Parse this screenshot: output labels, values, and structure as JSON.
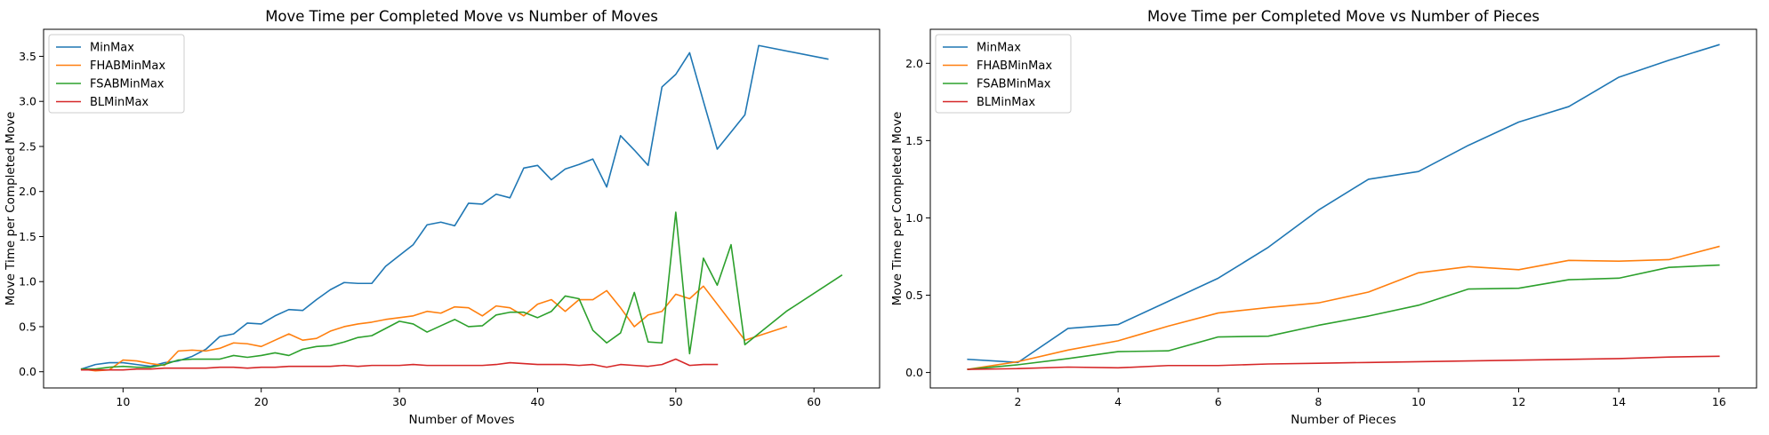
{
  "chart_data": [
    {
      "type": "line",
      "title": "Move Time per Completed Move vs Number of Moves",
      "xlabel": "Number of Moves",
      "ylabel": "Move Time per Completed Move",
      "xlim": [
        4.25,
        64.75
      ],
      "ylim": [
        -0.18,
        3.8
      ],
      "xticks": [
        10,
        20,
        30,
        40,
        50,
        60
      ],
      "yticks": [
        0.0,
        0.5,
        1.0,
        1.5,
        2.0,
        2.5,
        3.0,
        3.5
      ],
      "xtick_labels": [
        "10",
        "20",
        "30",
        "40",
        "50",
        "60"
      ],
      "ytick_labels": [
        "0.0",
        "0.5",
        "1.0",
        "1.5",
        "2.0",
        "2.5",
        "3.0",
        "3.5"
      ],
      "grid": false,
      "legend_position": "upper left",
      "series": [
        {
          "name": "MinMax",
          "color": "#1f77b4",
          "x": [
            7,
            8,
            9,
            10,
            11,
            12,
            13,
            14,
            15,
            16,
            17,
            18,
            19,
            20,
            21,
            22,
            23,
            24,
            25,
            26,
            27,
            28,
            29,
            30,
            31,
            32,
            33,
            34,
            35,
            36,
            37,
            38,
            39,
            40,
            41,
            42,
            43,
            44,
            45,
            46,
            47,
            48,
            49,
            50,
            51,
            52,
            53,
            54,
            55,
            56,
            61
          ],
          "y": [
            0.03,
            0.08,
            0.1,
            0.1,
            0.08,
            0.06,
            0.1,
            0.12,
            0.17,
            0.25,
            0.39,
            0.42,
            0.54,
            0.53,
            0.62,
            0.69,
            0.68,
            0.8,
            0.91,
            0.99,
            0.98,
            0.98,
            1.17,
            1.29,
            1.41,
            1.63,
            1.66,
            1.62,
            1.87,
            1.86,
            1.97,
            1.93,
            2.26,
            2.29,
            2.13,
            2.25,
            2.3,
            2.36,
            2.05,
            2.62,
            2.46,
            2.29,
            3.16,
            3.3,
            3.54,
            3.0,
            2.47,
            2.66,
            2.85,
            3.62,
            3.47
          ]
        },
        {
          "name": "FHABMinMax",
          "color": "#ff7f0e",
          "x": [
            7,
            8,
            9,
            10,
            11,
            12,
            13,
            14,
            15,
            16,
            17,
            18,
            19,
            20,
            21,
            22,
            23,
            24,
            25,
            26,
            27,
            28,
            29,
            30,
            31,
            32,
            33,
            34,
            35,
            36,
            37,
            38,
            39,
            40,
            41,
            42,
            43,
            44,
            45,
            46,
            47,
            48,
            49,
            50,
            51,
            52,
            55,
            58
          ],
          "y": [
            0.03,
            0.01,
            0.02,
            0.13,
            0.12,
            0.09,
            0.07,
            0.23,
            0.24,
            0.23,
            0.26,
            0.32,
            0.31,
            0.28,
            0.35,
            0.42,
            0.35,
            0.37,
            0.45,
            0.5,
            0.53,
            0.55,
            0.58,
            0.6,
            0.62,
            0.67,
            0.65,
            0.72,
            0.71,
            0.62,
            0.73,
            0.71,
            0.62,
            0.75,
            0.8,
            0.67,
            0.8,
            0.8,
            0.9,
            0.71,
            0.5,
            0.63,
            0.67,
            0.86,
            0.81,
            0.95,
            0.35,
            0.5
          ]
        },
        {
          "name": "FSABMinMax",
          "color": "#2ca02c",
          "x": [
            7,
            8,
            9,
            10,
            11,
            12,
            13,
            14,
            15,
            16,
            17,
            18,
            19,
            20,
            21,
            22,
            23,
            24,
            25,
            26,
            27,
            28,
            29,
            30,
            31,
            32,
            33,
            34,
            35,
            36,
            37,
            38,
            39,
            40,
            41,
            42,
            43,
            44,
            45,
            46,
            47,
            48,
            49,
            50,
            51,
            52,
            53,
            54,
            55,
            58,
            62
          ],
          "y": [
            0.03,
            0.03,
            0.05,
            0.06,
            0.05,
            0.05,
            0.08,
            0.13,
            0.14,
            0.14,
            0.14,
            0.18,
            0.16,
            0.18,
            0.21,
            0.18,
            0.25,
            0.28,
            0.29,
            0.33,
            0.38,
            0.4,
            0.48,
            0.56,
            0.53,
            0.44,
            0.51,
            0.58,
            0.5,
            0.51,
            0.63,
            0.66,
            0.66,
            0.6,
            0.67,
            0.84,
            0.81,
            0.46,
            0.32,
            0.43,
            0.88,
            0.33,
            0.32,
            1.77,
            0.2,
            1.26,
            0.96,
            1.41,
            0.3,
            0.67,
            1.07
          ]
        },
        {
          "name": "BLMinMax",
          "color": "#d62728",
          "x": [
            7,
            8,
            9,
            10,
            11,
            12,
            13,
            14,
            15,
            16,
            17,
            18,
            19,
            20,
            21,
            22,
            23,
            24,
            25,
            26,
            27,
            28,
            29,
            30,
            31,
            32,
            33,
            34,
            35,
            36,
            37,
            38,
            39,
            40,
            41,
            42,
            43,
            44,
            45,
            46,
            47,
            48,
            49,
            50,
            51,
            52,
            53
          ],
          "y": [
            0.02,
            0.02,
            0.02,
            0.02,
            0.03,
            0.03,
            0.04,
            0.04,
            0.04,
            0.04,
            0.05,
            0.05,
            0.04,
            0.05,
            0.05,
            0.06,
            0.06,
            0.06,
            0.06,
            0.07,
            0.06,
            0.07,
            0.07,
            0.07,
            0.08,
            0.07,
            0.07,
            0.07,
            0.07,
            0.07,
            0.08,
            0.1,
            0.09,
            0.08,
            0.08,
            0.08,
            0.07,
            0.08,
            0.05,
            0.08,
            0.07,
            0.06,
            0.08,
            0.14,
            0.07,
            0.08,
            0.08
          ]
        }
      ]
    },
    {
      "type": "line",
      "title": "Move Time per Completed Move vs Number of Pieces",
      "xlabel": "Number of Pieces",
      "ylabel": "Move Time per Completed Move",
      "xlim": [
        0.25,
        16.75
      ],
      "ylim": [
        -0.1,
        2.22
      ],
      "xticks": [
        2,
        4,
        6,
        8,
        10,
        12,
        14,
        16
      ],
      "yticks": [
        0.0,
        0.5,
        1.0,
        1.5,
        2.0
      ],
      "xtick_labels": [
        "2",
        "4",
        "6",
        "8",
        "10",
        "12",
        "14",
        "16"
      ],
      "ytick_labels": [
        "0.0",
        "0.5",
        "1.0",
        "1.5",
        "2.0"
      ],
      "grid": false,
      "legend_position": "upper left",
      "series": [
        {
          "name": "MinMax",
          "color": "#1f77b4",
          "x": [
            1,
            2,
            3,
            4,
            5,
            6,
            7,
            8,
            9,
            10,
            11,
            12,
            13,
            14,
            15,
            16
          ],
          "y": [
            0.085,
            0.065,
            0.285,
            0.31,
            0.46,
            0.61,
            0.81,
            1.05,
            1.25,
            1.3,
            1.47,
            1.62,
            1.72,
            1.91,
            2.02,
            2.12
          ]
        },
        {
          "name": "FHABMinMax",
          "color": "#ff7f0e",
          "x": [
            1,
            2,
            3,
            4,
            5,
            6,
            7,
            8,
            9,
            10,
            11,
            12,
            13,
            14,
            15,
            16
          ],
          "y": [
            0.02,
            0.07,
            0.145,
            0.205,
            0.3,
            0.385,
            0.42,
            0.45,
            0.52,
            0.645,
            0.685,
            0.665,
            0.725,
            0.72,
            0.73,
            0.815
          ]
        },
        {
          "name": "FSABMinMax",
          "color": "#2ca02c",
          "x": [
            1,
            2,
            3,
            4,
            5,
            6,
            7,
            8,
            9,
            10,
            11,
            12,
            13,
            14,
            15,
            16
          ],
          "y": [
            0.02,
            0.05,
            0.09,
            0.135,
            0.14,
            0.23,
            0.235,
            0.305,
            0.365,
            0.435,
            0.54,
            0.545,
            0.6,
            0.61,
            0.68,
            0.695
          ]
        },
        {
          "name": "BLMinMax",
          "color": "#d62728",
          "x": [
            1,
            2,
            3,
            4,
            5,
            6,
            7,
            8,
            9,
            10,
            11,
            12,
            13,
            14,
            15,
            16
          ],
          "y": [
            0.02,
            0.025,
            0.035,
            0.03,
            0.045,
            0.045,
            0.055,
            0.06,
            0.065,
            0.07,
            0.075,
            0.08,
            0.085,
            0.09,
            0.1,
            0.105
          ]
        }
      ]
    }
  ]
}
